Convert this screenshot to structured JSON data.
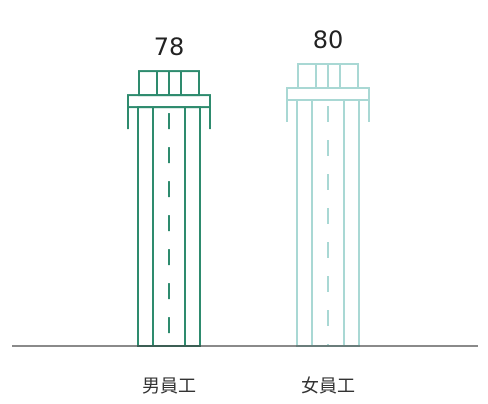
{
  "chart_data": {
    "type": "bar",
    "title": "",
    "xlabel": "",
    "ylabel": "",
    "categories": [
      "男員工",
      "女員工"
    ],
    "values": [
      78,
      80
    ],
    "data_labels": [
      "78",
      "80"
    ],
    "ylim": [
      0,
      80
    ],
    "grid": false,
    "legend": "none",
    "colors": [
      "#2e8b6e",
      "#a9d8d4"
    ]
  }
}
